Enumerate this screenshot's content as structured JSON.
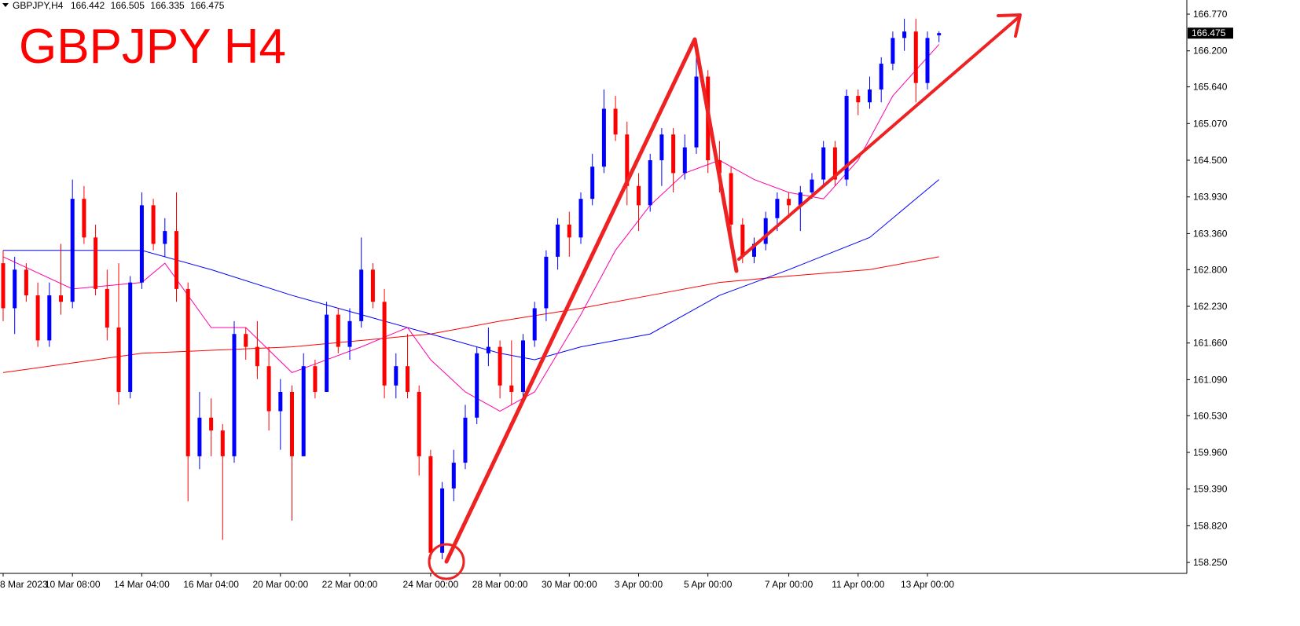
{
  "chart_data": {
    "type": "candlestick",
    "symbol": "GBPJPY,H4",
    "header_ohlc": [
      166.442,
      166.505,
      166.335,
      166.475
    ],
    "title": "GBPJPY H4",
    "up_color": "#0000ff",
    "down_color": "#ff0000",
    "ylim": [
      158.08,
      166.99
    ],
    "yticks": [
      {
        "value": 166.77,
        "label": "166.770"
      },
      {
        "value": 166.2,
        "label": "166.200"
      },
      {
        "value": 165.64,
        "label": "165.640"
      },
      {
        "value": 165.07,
        "label": "165.070"
      },
      {
        "value": 164.5,
        "label": "164.500"
      },
      {
        "value": 163.93,
        "label": "163.930"
      },
      {
        "value": 163.36,
        "label": "163.360"
      },
      {
        "value": 162.8,
        "label": "162.800"
      },
      {
        "value": 162.23,
        "label": "162.230"
      },
      {
        "value": 161.66,
        "label": "161.660"
      },
      {
        "value": 161.09,
        "label": "161.090"
      },
      {
        "value": 160.53,
        "label": "160.530"
      },
      {
        "value": 159.96,
        "label": "159.960"
      },
      {
        "value": 159.39,
        "label": "159.390"
      },
      {
        "value": 158.82,
        "label": "158.820"
      },
      {
        "value": 158.25,
        "label": "158.250"
      }
    ],
    "categories": [
      "8 Mar 2023",
      null,
      null,
      null,
      null,
      null,
      "10 Mar 08:00",
      null,
      null,
      null,
      null,
      null,
      "14 Mar 04:00",
      null,
      null,
      null,
      null,
      null,
      "16 Mar 04:00",
      null,
      null,
      null,
      null,
      null,
      "20 Mar 00:00",
      null,
      null,
      null,
      null,
      null,
      "22 Mar 00:00",
      null,
      null,
      null,
      null,
      null,
      null,
      "24 Mar 00:00",
      null,
      null,
      null,
      null,
      null,
      "28 Mar 00:00",
      null,
      null,
      null,
      null,
      null,
      "30 Mar 00:00",
      null,
      null,
      null,
      null,
      null,
      "3 Apr 00:00",
      null,
      null,
      null,
      null,
      null,
      "5 Apr 00:00",
      null,
      null,
      null,
      null,
      null,
      null,
      "7 Apr 00:00",
      null,
      null,
      null,
      null,
      null,
      "11 Apr 00:00",
      null,
      null,
      null,
      null,
      null,
      "13 Apr 00:00",
      null
    ],
    "ohlc": [
      [
        162.9,
        163.1,
        162.0,
        162.2
      ],
      [
        162.2,
        163.0,
        161.8,
        162.8
      ],
      [
        162.8,
        162.9,
        162.3,
        162.4
      ],
      [
        162.4,
        162.6,
        161.6,
        161.7
      ],
      [
        161.7,
        162.6,
        161.6,
        162.4
      ],
      [
        162.4,
        163.2,
        162.1,
        162.3
      ],
      [
        162.3,
        164.2,
        162.2,
        163.9
      ],
      [
        163.9,
        164.1,
        163.2,
        163.3
      ],
      [
        163.3,
        163.5,
        162.4,
        162.5
      ],
      [
        162.5,
        162.8,
        161.7,
        161.9
      ],
      [
        161.9,
        162.9,
        160.7,
        160.9
      ],
      [
        160.9,
        162.7,
        160.8,
        162.6
      ],
      [
        162.6,
        164.0,
        162.5,
        163.8
      ],
      [
        163.8,
        163.9,
        163.1,
        163.2
      ],
      [
        163.2,
        163.6,
        163.0,
        163.4
      ],
      [
        163.4,
        164.0,
        162.3,
        162.5
      ],
      [
        162.5,
        162.6,
        159.2,
        159.9
      ],
      [
        159.9,
        160.9,
        159.7,
        160.5
      ],
      [
        160.5,
        160.8,
        159.9,
        160.3
      ],
      [
        160.3,
        160.4,
        158.6,
        159.9
      ],
      [
        159.9,
        162.0,
        159.8,
        161.8
      ],
      [
        161.8,
        161.9,
        161.4,
        161.6
      ],
      [
        161.6,
        162.0,
        161.1,
        161.3
      ],
      [
        161.3,
        161.6,
        160.3,
        160.6
      ],
      [
        160.6,
        161.1,
        160.0,
        160.9
      ],
      [
        160.9,
        161.0,
        158.9,
        159.9
      ],
      [
        159.9,
        161.5,
        159.9,
        161.3
      ],
      [
        161.3,
        161.4,
        160.8,
        160.9
      ],
      [
        160.9,
        162.3,
        160.9,
        162.1
      ],
      [
        162.1,
        162.2,
        161.5,
        161.6
      ],
      [
        161.6,
        162.2,
        161.4,
        162.0
      ],
      [
        162.0,
        163.3,
        161.9,
        162.8
      ],
      [
        162.8,
        162.9,
        162.2,
        162.3
      ],
      [
        162.3,
        162.5,
        160.8,
        161.0
      ],
      [
        161.0,
        161.5,
        160.8,
        161.3
      ],
      [
        161.3,
        161.8,
        160.8,
        160.9
      ],
      [
        160.9,
        161.0,
        159.6,
        159.9
      ],
      [
        159.9,
        160.0,
        158.3,
        158.4
      ],
      [
        158.4,
        159.5,
        158.3,
        159.4
      ],
      [
        159.4,
        160.0,
        159.2,
        159.8
      ],
      [
        159.8,
        160.7,
        159.7,
        160.5
      ],
      [
        160.5,
        161.6,
        160.4,
        161.5
      ],
      [
        161.5,
        161.9,
        161.3,
        161.6
      ],
      [
        161.6,
        161.7,
        160.8,
        161.0
      ],
      [
        161.0,
        161.7,
        160.7,
        160.9
      ],
      [
        160.9,
        161.8,
        160.8,
        161.7
      ],
      [
        161.7,
        162.3,
        161.6,
        162.2
      ],
      [
        162.2,
        163.1,
        162.0,
        163.0
      ],
      [
        163.0,
        163.6,
        162.8,
        163.5
      ],
      [
        163.5,
        163.7,
        163.0,
        163.3
      ],
      [
        163.3,
        164.0,
        163.2,
        163.9
      ],
      [
        163.9,
        164.6,
        163.8,
        164.4
      ],
      [
        164.4,
        165.6,
        164.3,
        165.3
      ],
      [
        165.3,
        165.5,
        164.8,
        164.9
      ],
      [
        164.9,
        165.1,
        163.8,
        164.1
      ],
      [
        164.1,
        164.3,
        163.4,
        163.8
      ],
      [
        163.8,
        164.6,
        163.7,
        164.5
      ],
      [
        164.5,
        165.0,
        164.1,
        164.9
      ],
      [
        164.9,
        165.0,
        164.0,
        164.3
      ],
      [
        164.3,
        164.9,
        164.2,
        164.7
      ],
      [
        164.7,
        166.1,
        164.6,
        165.8
      ],
      [
        165.8,
        165.9,
        164.3,
        164.5
      ],
      [
        164.5,
        164.8,
        164.0,
        164.3
      ],
      [
        164.3,
        164.4,
        163.2,
        163.5
      ],
      [
        163.5,
        163.6,
        162.9,
        163.0
      ],
      [
        163.0,
        163.3,
        162.9,
        163.2
      ],
      [
        163.2,
        163.7,
        163.1,
        163.6
      ],
      [
        163.6,
        164.0,
        163.4,
        163.9
      ],
      [
        163.9,
        164.0,
        163.6,
        163.8
      ],
      [
        163.8,
        164.1,
        163.4,
        164.0
      ],
      [
        164.0,
        164.3,
        163.9,
        164.2
      ],
      [
        164.2,
        164.8,
        164.1,
        164.7
      ],
      [
        164.7,
        164.8,
        164.1,
        164.2
      ],
      [
        164.2,
        165.6,
        164.1,
        165.5
      ],
      [
        165.5,
        165.6,
        165.2,
        165.4
      ],
      [
        165.4,
        165.8,
        165.3,
        165.6
      ],
      [
        165.6,
        166.1,
        165.4,
        166.0
      ],
      [
        166.0,
        166.5,
        165.9,
        166.4
      ],
      [
        166.4,
        166.7,
        166.2,
        166.5
      ],
      [
        166.5,
        166.7,
        165.4,
        165.7
      ],
      [
        165.7,
        166.5,
        165.6,
        166.4
      ],
      [
        166.442,
        166.505,
        166.335,
        166.475
      ]
    ],
    "series": [
      {
        "color": "#ff0000",
        "x": [
          0,
          12,
          25,
          37,
          43,
          50,
          56,
          62,
          68,
          75,
          81
        ],
        "values": [
          161.2,
          161.5,
          161.6,
          161.8,
          162.0,
          162.2,
          162.4,
          162.6,
          162.7,
          162.8,
          163.0
        ]
      },
      {
        "color": "#0000ff",
        "x": [
          0,
          6,
          12,
          18,
          25,
          31,
          37,
          43,
          46,
          50,
          56,
          62,
          68,
          75,
          81
        ],
        "values": [
          163.1,
          163.1,
          163.1,
          162.8,
          162.4,
          162.1,
          161.8,
          161.5,
          161.4,
          161.6,
          161.8,
          162.4,
          162.8,
          163.3,
          164.2
        ]
      },
      {
        "color": "#ff00aa",
        "x": [
          0,
          6,
          12,
          14,
          18,
          21,
          25,
          31,
          35,
          37,
          40,
          43,
          46,
          50,
          53,
          56,
          59,
          62,
          65,
          68,
          71,
          74,
          77,
          81
        ],
        "values": [
          163.0,
          162.5,
          162.6,
          162.9,
          161.9,
          161.9,
          161.2,
          161.6,
          161.9,
          161.4,
          160.9,
          160.6,
          160.9,
          162.1,
          163.1,
          163.8,
          164.3,
          164.5,
          164.2,
          164.0,
          163.9,
          164.5,
          165.5,
          166.3
        ]
      }
    ]
  }
}
